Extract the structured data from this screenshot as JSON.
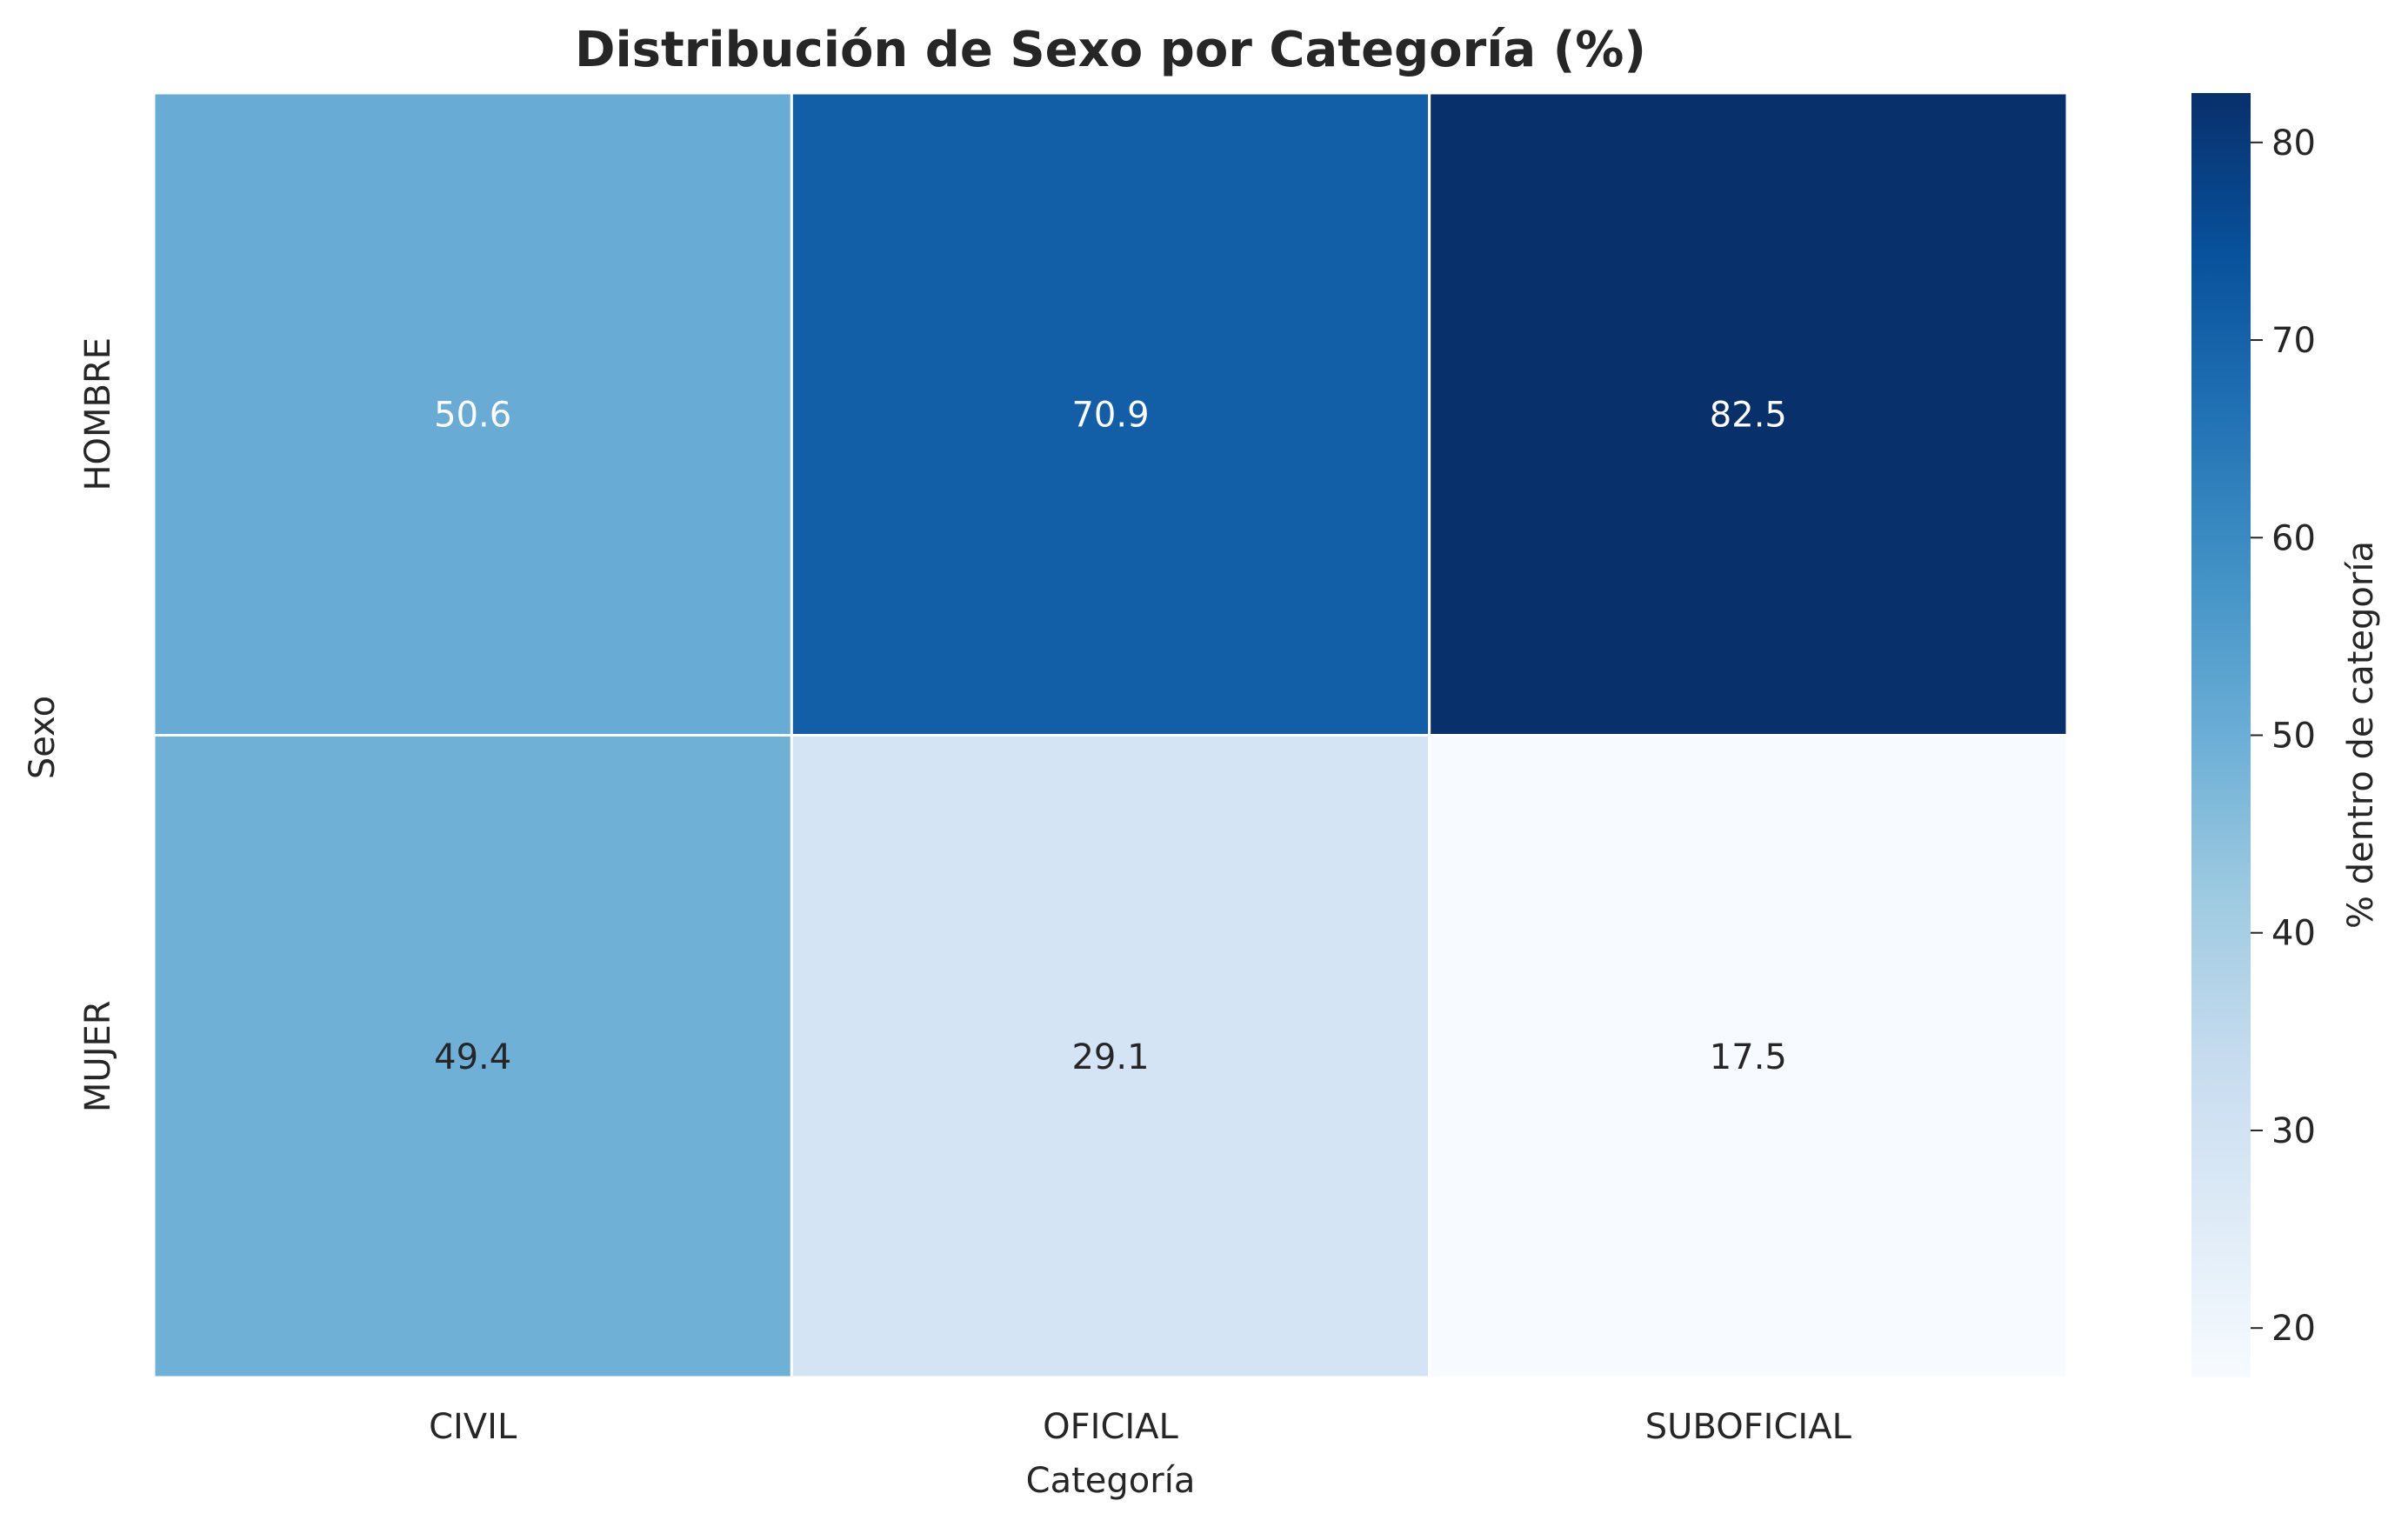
{
  "chart_data": {
    "type": "heatmap",
    "title": "Distribución de Sexo por Categoría (%)",
    "xlabel": "Categoría",
    "ylabel": "Sexo",
    "x_categories": [
      "CIVIL",
      "OFICIAL",
      "SUBOFICIAL"
    ],
    "y_categories": [
      "HOMBRE",
      "MUJER"
    ],
    "values": [
      [
        50.6,
        70.9,
        82.5
      ],
      [
        49.4,
        29.1,
        17.5
      ]
    ],
    "colorbar": {
      "label": "% dentro de categoría",
      "range": [
        17.5,
        82.5
      ],
      "ticks": [
        20,
        30,
        40,
        50,
        60,
        70,
        80
      ],
      "colormap": "Blues"
    },
    "annotation_colors": {
      "dark_text": "#262626",
      "light_text": "#ffffff"
    }
  }
}
